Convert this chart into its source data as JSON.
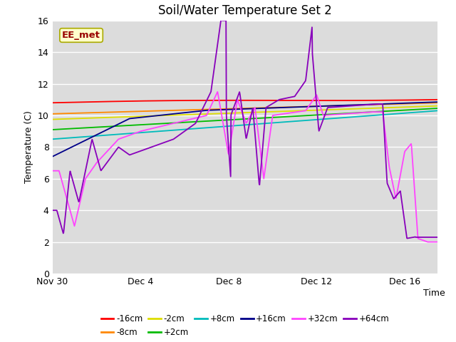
{
  "title": "Soil/Water Temperature Set 2",
  "xlabel": "Time",
  "ylabel": "Temperature (C)",
  "ylim": [
    0,
    16
  ],
  "xlim_days": [
    0,
    17.5
  ],
  "x_ticks_labels": [
    "Nov 30",
    "Dec 4",
    "Dec 8",
    "Dec 12",
    "Dec 16"
  ],
  "x_ticks_pos": [
    0,
    4,
    8,
    12,
    16
  ],
  "background_color": "#dcdcdc",
  "fig_background": "#ffffff",
  "grid_color": "#ffffff",
  "series": [
    {
      "label": "-16cm",
      "color": "#ff0000"
    },
    {
      "label": "-8cm",
      "color": "#ff8800"
    },
    {
      "label": "-2cm",
      "color": "#dddd00"
    },
    {
      "label": "+2cm",
      "color": "#00bb00"
    },
    {
      "label": "+8cm",
      "color": "#00bbbb"
    },
    {
      "label": "+16cm",
      "color": "#000088"
    },
    {
      "label": "+32cm",
      "color": "#ff44ff"
    },
    {
      "label": "+64cm",
      "color": "#8800bb"
    }
  ],
  "legend_label": "EE_met",
  "legend_color": "#990000",
  "legend_bg": "#ffffcc",
  "legend_border": "#aaaa00"
}
